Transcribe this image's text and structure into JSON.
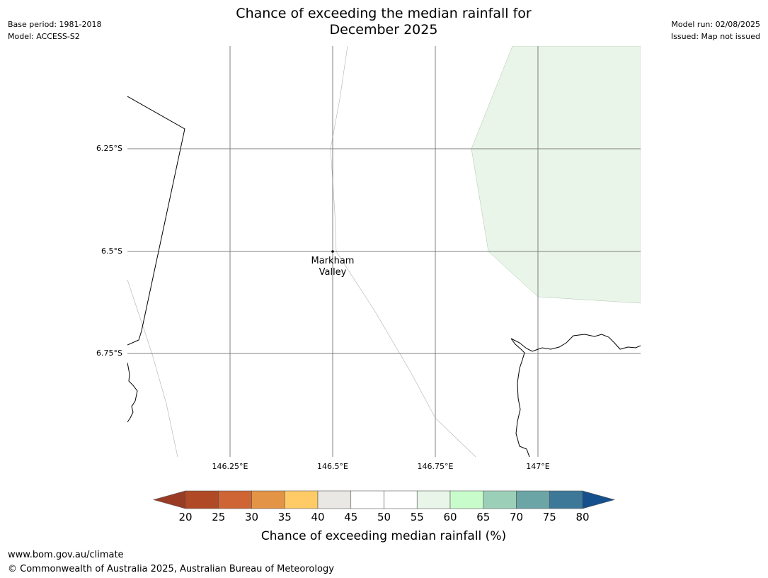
{
  "title": {
    "line1": "Chance of exceeding the median rainfall for",
    "line2": "December 2025"
  },
  "meta_left": {
    "base_period": "Base period: 1981-2018",
    "model": "Model: ACCESS-S2"
  },
  "meta_right": {
    "model_run": "Model run: 02/08/2025",
    "issued": "Issued: Map not issued"
  },
  "map": {
    "longitude_range_E": [
      146.0,
      147.25
    ],
    "latitude_range_S": [
      6.0,
      7.0
    ],
    "lat_labels": [
      "6.25°S",
      "6.5°S",
      "6.75°S"
    ],
    "lon_labels": [
      "146.25°E",
      "146.5°E",
      "146.75°E",
      "147°E"
    ],
    "place_marker": {
      "name_line1": "Markham",
      "name_line2": "Valley",
      "lon_E": 146.5,
      "lat_S": 6.5
    },
    "shaded_region_category": "55-60",
    "shaded_region_color": "#e9f5e9",
    "gridline_color": "#808080",
    "coastline_color": "#000000"
  },
  "colorbar": {
    "label": "Chance of exceeding median rainfall (%)",
    "ticks": [
      "20",
      "25",
      "30",
      "35",
      "40",
      "45",
      "50",
      "55",
      "60",
      "65",
      "70",
      "75",
      "80"
    ],
    "under_color": "#9a3b24",
    "over_color": "#154f8c",
    "colors": [
      "#b04a26",
      "#cf6534",
      "#e39447",
      "#fecb67",
      "#e9e8e4",
      "#ffffff",
      "#ffffff",
      "#e9f5e9",
      "#c9fccb",
      "#9ccfb8",
      "#6ca5a6",
      "#3e7899"
    ]
  },
  "footer": {
    "url": "www.bom.gov.au/climate",
    "copyright": "© Commonwealth of Australia 2025, Australian Bureau of Meteorology"
  }
}
